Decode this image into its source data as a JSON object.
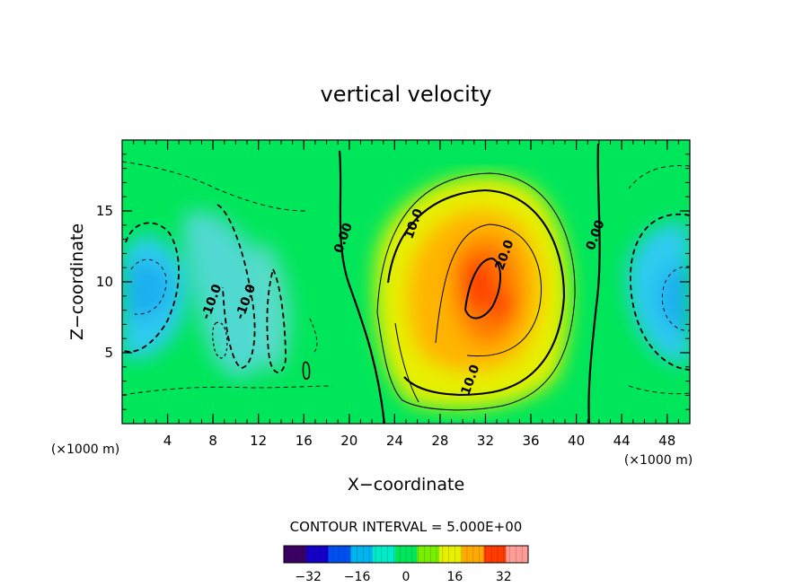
{
  "chart_data": {
    "type": "heatmap",
    "title": "vertical velocity",
    "xlabel": "X−coordinate",
    "ylabel": "Z−coordinate",
    "x_unit": "(×1000 m)",
    "xlim": [
      0,
      50
    ],
    "ylim": [
      0,
      20
    ],
    "x_ticks": [
      4,
      8,
      12,
      16,
      20,
      24,
      28,
      32,
      36,
      40,
      44,
      48
    ],
    "y_ticks": [
      5,
      10,
      15
    ],
    "contour_interval_text": "CONTOUR INTERVAL = 5.000E+00",
    "contour_interval": 5.0,
    "contour_labels": [
      {
        "text": "0.00",
        "x": 19.8,
        "z": 13.0
      },
      {
        "text": "10.0",
        "x": 26.0,
        "z": 14.0
      },
      {
        "text": "20.0",
        "x": 34.0,
        "z": 11.8
      },
      {
        "text": "0.00",
        "x": 42.0,
        "z": 13.2
      },
      {
        "text": "-10.0",
        "x": 8.2,
        "z": 8.5
      },
      {
        "text": "-10.0",
        "x": 11.2,
        "z": 8.5
      },
      {
        "text": "10.0",
        "x": 31.0,
        "z": 3.0
      }
    ],
    "field_features": [
      {
        "kind": "max",
        "x": 31.5,
        "z": 10.5,
        "value": 28
      },
      {
        "kind": "max",
        "x": 33.5,
        "z": 8.0,
        "value": 24
      },
      {
        "kind": "min",
        "x": 3.5,
        "z": 10.0,
        "value": -16
      },
      {
        "kind": "min",
        "x": 48.0,
        "z": 8.5,
        "value": -16
      },
      {
        "kind": "min",
        "x": 8.5,
        "z": 7.0,
        "value": -12
      },
      {
        "kind": "min",
        "x": 13.0,
        "z": 8.0,
        "value": -10
      }
    ],
    "colorbar": {
      "range": [
        -40,
        40
      ],
      "ticks": [
        -32,
        -16,
        0,
        16,
        32
      ],
      "colors": [
        "#3a0062",
        "#1400c8",
        "#0050f0",
        "#00b4f0",
        "#00ebc8",
        "#00e65a",
        "#78ee00",
        "#e6f000",
        "#ffaa00",
        "#ff3c00",
        "#ff9c96"
      ]
    }
  }
}
